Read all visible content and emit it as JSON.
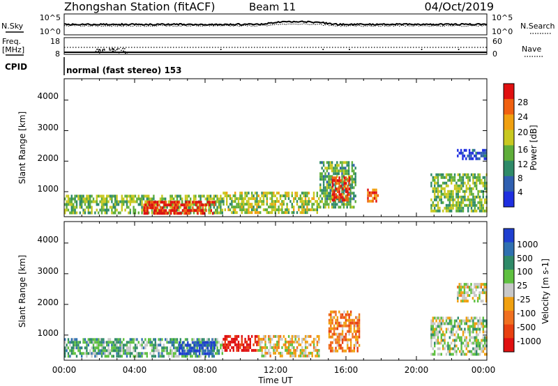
{
  "header": {
    "station": "Zhongshan Station (fitACF)",
    "beam": "Beam 11",
    "date": "04/Oct/2019"
  },
  "strip1": {
    "left_label": "N.Sky",
    "right_label": "N.Search",
    "left_ticks": [
      "10^5",
      "10^0"
    ],
    "right_ticks": [
      "10^5",
      "10^0"
    ]
  },
  "strip2": {
    "left_label_1": "Freq.",
    "left_label_2": "[MHz]",
    "right_label": "Nave",
    "left_ticks": [
      "18",
      "8"
    ],
    "right_ticks": [
      "60",
      "0"
    ]
  },
  "cpid": {
    "label": "CPID",
    "text": "normal (fast stereo) 153"
  },
  "time_axis": {
    "label": "Time UT",
    "ticks": [
      "00:00",
      "04:00",
      "08:00",
      "12:00",
      "16:00",
      "20:00",
      "00:00"
    ]
  },
  "chart_data": [
    {
      "type": "heatmap",
      "panel": "power",
      "xlabel": "",
      "ylabel": "Slant Range [km]",
      "yticks": [
        "1000",
        "2000",
        "3000",
        "4000"
      ],
      "ylim": [
        180,
        4700
      ],
      "colorbar_label": "Power [dB]",
      "colorbar_ticks": [
        "4",
        "8",
        "12",
        "16",
        "20",
        "24",
        "28"
      ],
      "colors": [
        "#1f2fe0",
        "#2f5fb0",
        "#2f8a68",
        "#5fae3a",
        "#c8c820",
        "#f0a010",
        "#f06010",
        "#e01010"
      ],
      "regions": [
        {
          "t": [
            0.0,
            9.0
          ],
          "r": [
            300,
            900
          ],
          "level": 0.45
        },
        {
          "t": [
            4.5,
            8.5
          ],
          "r": [
            300,
            700
          ],
          "level": 0.92
        },
        {
          "t": [
            9.0,
            14.5
          ],
          "r": [
            350,
            1000
          ],
          "level": 0.5
        },
        {
          "t": [
            14.5,
            16.5
          ],
          "r": [
            500,
            2000
          ],
          "level": 0.4
        },
        {
          "t": [
            15.2,
            16.2
          ],
          "r": [
            700,
            1500
          ],
          "level": 0.9
        },
        {
          "t": [
            17.2,
            17.8
          ],
          "r": [
            700,
            1100
          ],
          "level": 0.8
        },
        {
          "t": [
            20.8,
            24.0
          ],
          "r": [
            400,
            1600
          ],
          "level": 0.45
        },
        {
          "t": [
            22.3,
            24.0
          ],
          "r": [
            2100,
            2400
          ],
          "level": 0.1
        }
      ]
    },
    {
      "type": "heatmap",
      "panel": "velocity",
      "xlabel": "",
      "ylabel": "Slant Range [km]",
      "yticks": [
        "1000",
        "2000",
        "3000",
        "4000"
      ],
      "ylim": [
        180,
        4700
      ],
      "colorbar_label": "Velocity [m s-1]",
      "colorbar_ticks": [
        "1000",
        "500",
        "100",
        "25",
        "-25",
        "-100",
        "-500",
        "-1000"
      ],
      "colors": [
        "#1f3fd0",
        "#2f70b0",
        "#2f8a68",
        "#5fc040",
        "#c8c8c8",
        "#f0a010",
        "#f07020",
        "#e84010",
        "#e01010"
      ],
      "regions": [
        {
          "t": [
            0.0,
            9.0
          ],
          "r": [
            300,
            900
          ],
          "level": 0.35
        },
        {
          "t": [
            6.5,
            8.5
          ],
          "r": [
            350,
            800
          ],
          "level": 0.05
        },
        {
          "t": [
            9.0,
            11.0
          ],
          "r": [
            500,
            1000
          ],
          "level": 0.95
        },
        {
          "t": [
            11.0,
            14.5
          ],
          "r": [
            350,
            1000
          ],
          "level": 0.55
        },
        {
          "t": [
            15.0,
            16.8
          ],
          "r": [
            500,
            1800
          ],
          "level": 0.7
        },
        {
          "t": [
            20.8,
            24.0
          ],
          "r": [
            400,
            1600
          ],
          "level": 0.45
        },
        {
          "t": [
            22.3,
            24.0
          ],
          "r": [
            2100,
            2700
          ],
          "level": 0.5
        }
      ]
    }
  ]
}
